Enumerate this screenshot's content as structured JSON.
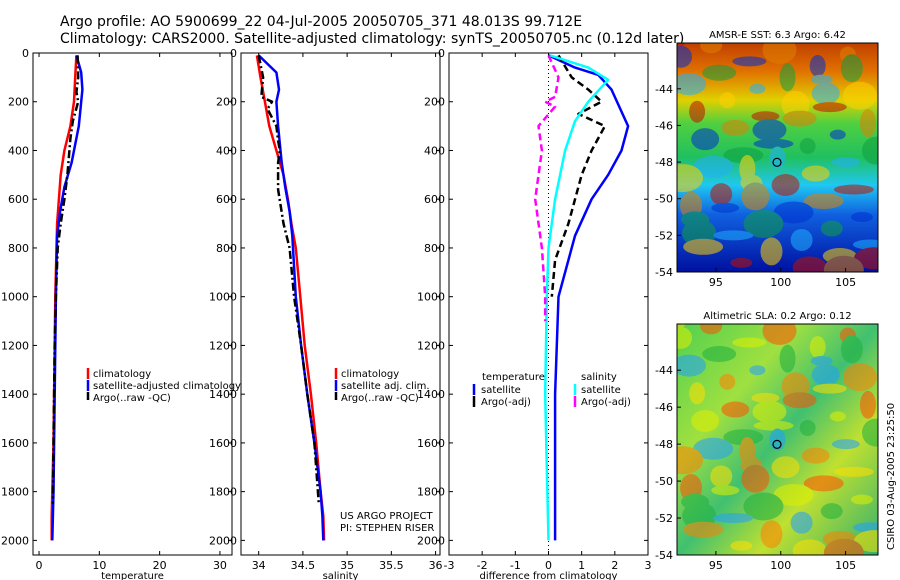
{
  "header": {
    "line1": "Argo profile: AO 5900699_22 04-Jul-2005 20050705_371 48.013S 99.712E",
    "line2": "Climatology: CARS2000. Satellite-adjusted climatology: synTS_20050705.nc (0.12d later)"
  },
  "credit": "CSIRO 03-Aug-2005 23:25:50",
  "colors": {
    "red": "#ff0000",
    "blue": "#0000ff",
    "black": "#000000",
    "cyan": "#00ffff",
    "magenta": "#ff00ff"
  },
  "chart_data": [
    {
      "id": "temperature",
      "type": "line",
      "xlabel": "temperature",
      "ylabel": "",
      "xlim": [
        -1,
        32
      ],
      "ylim": [
        2060,
        0
      ],
      "xticks": [
        0,
        10,
        20,
        30
      ],
      "yticks": [
        0,
        200,
        400,
        600,
        800,
        1000,
        1200,
        1400,
        1600,
        1800,
        2000
      ],
      "legend": [
        "climatology",
        "satellite-adjusted climatology",
        "Argo(..raw -QC)"
      ],
      "series": [
        {
          "name": "climatology",
          "color": "red",
          "style": "solid",
          "x": [
            6.2,
            6.0,
            5.8,
            5.2,
            4.2,
            3.6,
            3.3,
            3.0,
            2.9,
            2.7,
            2.6,
            2.5,
            2.4,
            2.3,
            2.2,
            2.1,
            2.1
          ],
          "y": [
            10,
            100,
            200,
            300,
            400,
            500,
            600,
            700,
            800,
            1000,
            1200,
            1400,
            1600,
            1700,
            1800,
            1900,
            2000
          ]
        },
        {
          "name": "satellite-adjusted climatology",
          "color": "blue",
          "style": "solid",
          "x": [
            6.2,
            7.0,
            7.2,
            7.0,
            6.6,
            5.4,
            4.2,
            3.5,
            3.0,
            2.8,
            2.7,
            2.6,
            2.5,
            2.4,
            2.3,
            2.2
          ],
          "y": [
            10,
            80,
            150,
            200,
            300,
            450,
            550,
            650,
            750,
            1000,
            1200,
            1400,
            1600,
            1800,
            1900,
            2000
          ]
        },
        {
          "name": "Argo(..raw -QC)",
          "color": "black",
          "style": "dashdot",
          "x": [
            6.4,
            6.5,
            6.2,
            6.5,
            5.6,
            5.2,
            4.7,
            4.2,
            3.6,
            3.1,
            2.8,
            2.6,
            2.5,
            2.4,
            2.3
          ],
          "y": [
            10,
            100,
            160,
            200,
            280,
            350,
            500,
            600,
            700,
            800,
            1000,
            1200,
            1400,
            1600,
            1850
          ]
        }
      ]
    },
    {
      "id": "salinity",
      "type": "line",
      "xlabel": "salinity",
      "ylabel": "",
      "xlim": [
        33.8,
        36.05
      ],
      "ylim": [
        2060,
        0
      ],
      "xticks": [
        34,
        34.5,
        35,
        35.5,
        36
      ],
      "yticks": [
        0,
        200,
        400,
        600,
        800,
        1000,
        1200,
        1400,
        1600,
        1800,
        2000
      ],
      "legend": [
        "climatology",
        "satellite adj. clim.",
        "Argo(..raw -QC)"
      ],
      "annotation": [
        "US ARGO PROJECT",
        "PI: STEPHEN RISER"
      ],
      "series": [
        {
          "name": "climatology",
          "color": "red",
          "style": "solid",
          "x": [
            33.98,
            34.02,
            34.07,
            34.12,
            34.2,
            34.28,
            34.33,
            34.37,
            34.42,
            34.47,
            34.52,
            34.59,
            34.65,
            34.7,
            34.73,
            34.74
          ],
          "y": [
            10,
            100,
            200,
            300,
            400,
            500,
            600,
            700,
            800,
            1000,
            1200,
            1400,
            1600,
            1800,
            1900,
            2000
          ]
        },
        {
          "name": "satellite adj. clim.",
          "color": "blue",
          "style": "solid",
          "x": [
            34.0,
            34.2,
            34.23,
            34.2,
            34.22,
            34.26,
            34.3,
            34.35,
            34.38,
            34.42,
            34.48,
            34.55,
            34.63,
            34.7,
            34.72,
            34.73
          ],
          "y": [
            10,
            80,
            150,
            200,
            300,
            450,
            550,
            650,
            750,
            1000,
            1200,
            1400,
            1600,
            1800,
            1900,
            2000
          ]
        },
        {
          "name": "Argo(..raw -QC)",
          "color": "black",
          "style": "dashdot",
          "x": [
            34.0,
            34.05,
            34.03,
            34.15,
            34.1,
            34.2,
            34.22,
            34.24,
            34.22,
            34.22,
            34.28,
            34.35,
            34.4,
            34.48,
            34.55,
            34.63,
            34.68
          ],
          "y": [
            10,
            100,
            180,
            200,
            230,
            300,
            360,
            400,
            450,
            560,
            700,
            800,
            1000,
            1200,
            1400,
            1600,
            1850
          ]
        }
      ]
    },
    {
      "id": "difference",
      "type": "line",
      "xlabel": "difference from climatology",
      "ylabel": "",
      "xlim": [
        -3,
        3
      ],
      "ylim": [
        2060,
        0
      ],
      "xticks": [
        -3,
        -2,
        -1,
        0,
        1,
        2,
        3
      ],
      "yticks": [
        0,
        200,
        400,
        600,
        800,
        1000,
        1200,
        1400,
        1600,
        1800,
        2000
      ],
      "legend_left_title": "temperature",
      "legend_left": [
        "satellite",
        "Argo(-adj)"
      ],
      "legend_right_title": "salinity",
      "legend_right": [
        "satellite",
        "Argo(-adj)"
      ],
      "series": [
        {
          "name": "temperature satellite",
          "color": "blue",
          "style": "solid",
          "x": [
            0,
            0.8,
            1.5,
            1.9,
            2.4,
            2.2,
            1.8,
            1.3,
            0.8,
            0.3,
            0.25,
            0.2,
            0.2,
            0.2
          ],
          "y": [
            10,
            60,
            90,
            150,
            300,
            400,
            500,
            600,
            750,
            1000,
            1200,
            1400,
            1700,
            2000
          ]
        },
        {
          "name": "temperature Argo(-adj)",
          "color": "black",
          "style": "dashed",
          "x": [
            0.3,
            0.7,
            1.2,
            1.6,
            0.9,
            1.7,
            1.3,
            1.0,
            0.6,
            0.2,
            0.1
          ],
          "y": [
            10,
            100,
            150,
            200,
            250,
            300,
            400,
            500,
            700,
            850,
            1000
          ]
        },
        {
          "name": "salinity satellite",
          "color": "cyan",
          "style": "solid",
          "x": [
            0.05,
            1.2,
            1.8,
            1.2,
            0.8,
            0.5,
            0.2,
            0.0,
            -0.05,
            -0.1,
            -0.05,
            0.0
          ],
          "y": [
            10,
            60,
            110,
            200,
            280,
            400,
            600,
            800,
            1000,
            1400,
            1700,
            2000
          ]
        },
        {
          "name": "salinity Argo(-adj)",
          "color": "magenta",
          "style": "dashed",
          "x": [
            0.0,
            0.3,
            0.2,
            -0.1,
            0.2,
            -0.3,
            -0.2,
            -0.4,
            -0.2,
            -0.1,
            -0.1
          ],
          "y": [
            10,
            100,
            180,
            200,
            220,
            300,
            400,
            600,
            800,
            1000,
            1100
          ]
        }
      ]
    },
    {
      "id": "sst_map",
      "type": "heatmap",
      "title": "AMSR-E SST: 6.3  Argo: 6.42",
      "xlim": [
        92,
        107.5
      ],
      "ylim": [
        -54,
        -41.5
      ],
      "xticks": [
        95,
        100,
        105
      ],
      "yticks": [
        -44,
        -46,
        -48,
        -50,
        -52,
        -54
      ],
      "marker": {
        "lon": 99.712,
        "lat": -48.013
      },
      "colormap": "jet"
    },
    {
      "id": "sla_map",
      "type": "heatmap",
      "title": "Altimetric SLA: 0.2  Argo: 0.12",
      "xlim": [
        92,
        107.5
      ],
      "ylim": [
        -54,
        -41.5
      ],
      "xticks": [
        95,
        100,
        105
      ],
      "yticks": [
        -44,
        -46,
        -48,
        -50,
        -52,
        -54
      ],
      "marker": {
        "lon": 99.712,
        "lat": -48.013
      },
      "colormap": "jet"
    }
  ]
}
